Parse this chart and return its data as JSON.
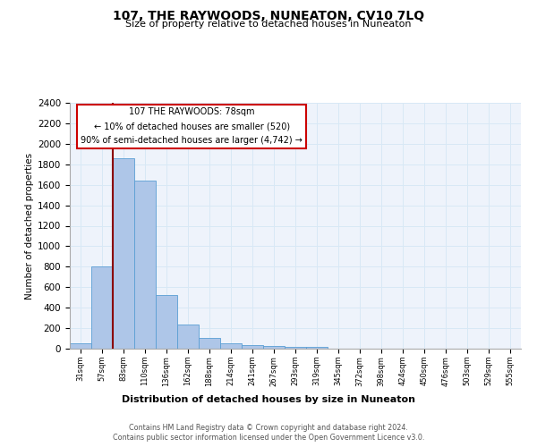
{
  "title": "107, THE RAYWOODS, NUNEATON, CV10 7LQ",
  "subtitle": "Size of property relative to detached houses in Nuneaton",
  "xlabel": "Distribution of detached houses by size in Nuneaton",
  "ylabel": "Number of detached properties",
  "footer_line1": "Contains HM Land Registry data © Crown copyright and database right 2024.",
  "footer_line2": "Contains public sector information licensed under the Open Government Licence v3.0.",
  "bar_color": "#aec6e8",
  "bar_edgecolor": "#5a9fd4",
  "gridcolor": "#d8e8f5",
  "background_color": "#eef3fb",
  "redline_color": "#8b0000",
  "categories": [
    "31sqm",
    "57sqm",
    "83sqm",
    "110sqm",
    "136sqm",
    "162sqm",
    "188sqm",
    "214sqm",
    "241sqm",
    "267sqm",
    "293sqm",
    "319sqm",
    "345sqm",
    "372sqm",
    "398sqm",
    "424sqm",
    "450sqm",
    "476sqm",
    "503sqm",
    "529sqm",
    "555sqm"
  ],
  "values": [
    50,
    800,
    1860,
    1640,
    520,
    235,
    105,
    55,
    35,
    25,
    20,
    20,
    0,
    0,
    0,
    0,
    0,
    0,
    0,
    0,
    0
  ],
  "redline_index": 2,
  "ylim": [
    0,
    2400
  ],
  "yticks": [
    0,
    200,
    400,
    600,
    800,
    1000,
    1200,
    1400,
    1600,
    1800,
    2000,
    2200,
    2400
  ],
  "annotation_line1": "107 THE RAYWOODS: 78sqm",
  "annotation_line2": "← 10% of detached houses are smaller (520)",
  "annotation_line3": "90% of semi-detached houses are larger (4,742) →"
}
